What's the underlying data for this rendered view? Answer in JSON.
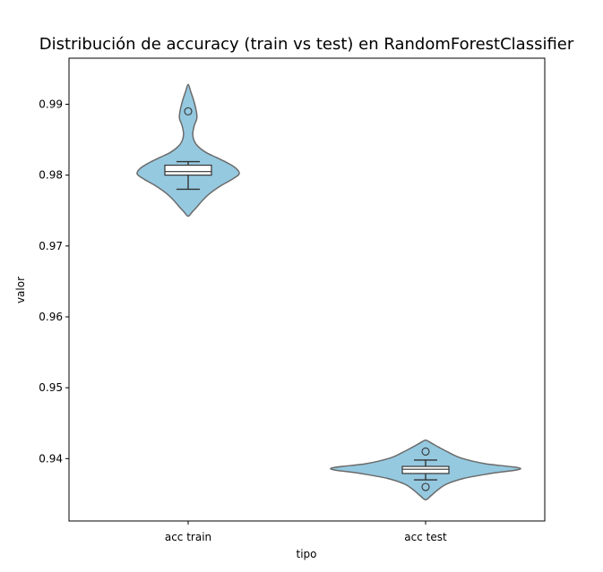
{
  "chart_data": {
    "type": "violin",
    "title": "Distribución de accuracy (train vs test) en RandomForestClassifier",
    "xlabel": "tipo",
    "ylabel": "valor",
    "categories": [
      "acc train",
      "acc test"
    ],
    "ylim": [
      0.9312,
      0.9965
    ],
    "yticks": [
      0.94,
      0.95,
      0.96,
      0.97,
      0.98,
      0.99
    ],
    "ytick_labels": [
      "0.94",
      "0.95",
      "0.96",
      "0.97",
      "0.98",
      "0.99"
    ],
    "grid": false,
    "fill_color": "#95c9e0",
    "edge_color": "#6b6b6b",
    "groups": [
      {
        "category": "acc train",
        "box": {
          "q1": 0.98,
          "median": 0.9805,
          "q3": 0.9814,
          "whisker_low": 0.978,
          "whisker_high": 0.9819
        },
        "outliers": [
          0.989
        ],
        "density": [
          [
            0.9742,
            0.0
          ],
          [
            0.9748,
            0.08
          ],
          [
            0.9755,
            0.17
          ],
          [
            0.9765,
            0.29
          ],
          [
            0.9775,
            0.44
          ],
          [
            0.9785,
            0.64
          ],
          [
            0.9795,
            0.88
          ],
          [
            0.9802,
            1.0
          ],
          [
            0.981,
            0.93
          ],
          [
            0.9818,
            0.75
          ],
          [
            0.9825,
            0.55
          ],
          [
            0.9832,
            0.35
          ],
          [
            0.984,
            0.2
          ],
          [
            0.9848,
            0.12
          ],
          [
            0.9858,
            0.09
          ],
          [
            0.987,
            0.12
          ],
          [
            0.988,
            0.17
          ],
          [
            0.989,
            0.16
          ],
          [
            0.9905,
            0.11
          ],
          [
            0.9918,
            0.05
          ],
          [
            0.9928,
            0.0
          ]
        ]
      },
      {
        "category": "acc test",
        "box": {
          "q1": 0.9379,
          "median": 0.9385,
          "q3": 0.9389,
          "whisker_low": 0.937,
          "whisker_high": 0.9398
        },
        "outliers": [
          0.941,
          0.936
        ],
        "density": [
          [
            0.9342,
            0.0
          ],
          [
            0.9348,
            0.06
          ],
          [
            0.9356,
            0.13
          ],
          [
            0.9364,
            0.22
          ],
          [
            0.9372,
            0.4
          ],
          [
            0.9379,
            0.68
          ],
          [
            0.9386,
            1.0
          ],
          [
            0.9393,
            0.62
          ],
          [
            0.9401,
            0.37
          ],
          [
            0.9409,
            0.24
          ],
          [
            0.9416,
            0.14
          ],
          [
            0.9422,
            0.06
          ],
          [
            0.9426,
            0.0
          ]
        ]
      }
    ]
  }
}
